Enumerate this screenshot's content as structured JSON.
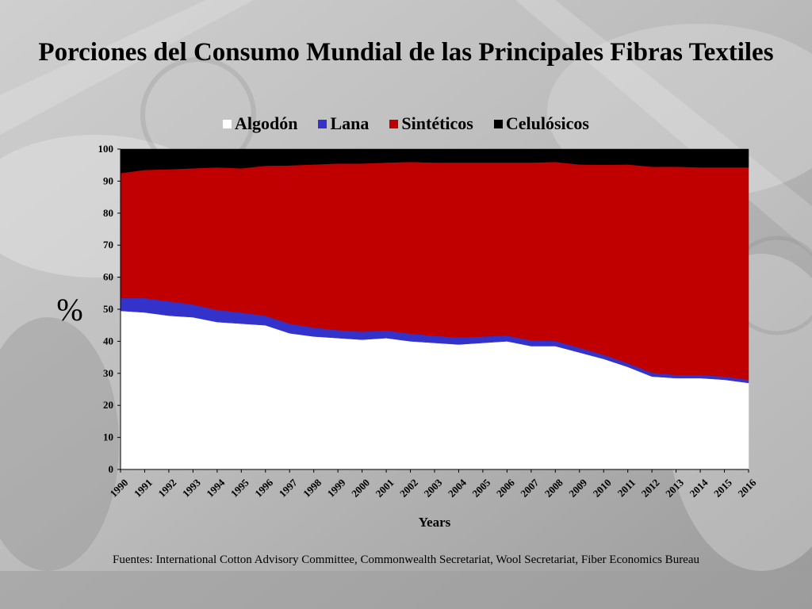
{
  "title": "Porciones del Consumo Mundial de las Principales Fibras Textiles",
  "source": "Fuentes: International Cotton Advisory Committee, Commonwealth Secretariat, Wool Secretariat, Fiber Economics Bureau",
  "chart_data": {
    "type": "area",
    "stacked": true,
    "ylabel": "%",
    "xlabel": "Years",
    "ylim": [
      0,
      100
    ],
    "yticks": [
      0,
      10,
      20,
      30,
      40,
      50,
      60,
      70,
      80,
      90,
      100
    ],
    "legend_position": "top",
    "x": [
      "1990",
      "1991",
      "1992",
      "1993",
      "1994",
      "1995",
      "1996",
      "1997",
      "1998",
      "1999",
      "2000",
      "2001",
      "2002",
      "2003",
      "2004",
      "2005",
      "2006",
      "2007",
      "2008",
      "2009",
      "2010",
      "2011",
      "2012",
      "2013",
      "2014",
      "2015",
      "2016"
    ],
    "series": [
      {
        "name": "Algodón",
        "color": "#ffffff",
        "values": [
          49.5,
          49,
          48,
          47.5,
          46,
          45.5,
          45,
          42.5,
          41.5,
          41,
          40.5,
          41,
          40,
          39.5,
          39,
          39.5,
          40,
          38.5,
          38.5,
          36.5,
          34.5,
          32,
          29,
          28.5,
          28.5,
          28,
          27
        ]
      },
      {
        "name": "Lana",
        "color": "#3333cc",
        "values": [
          4,
          4.5,
          4.5,
          4,
          3.8,
          3.5,
          3,
          3,
          2.8,
          2.5,
          2.5,
          2.4,
          2.4,
          2.2,
          2.2,
          2,
          1.8,
          1.8,
          1.6,
          1.5,
          1.3,
          1.2,
          1.2,
          1,
          1,
          1,
          1
        ]
      },
      {
        "name": "Sintéticos",
        "color": "#c00000",
        "values": [
          39,
          40,
          41.2,
          42.5,
          44.5,
          45,
          46.8,
          49.4,
          50.9,
          52,
          52.5,
          52.4,
          53.6,
          54.1,
          54.6,
          54.3,
          54,
          55.5,
          55.9,
          57.2,
          59.3,
          62,
          64.3,
          65,
          64.8,
          65.3,
          66.3
        ]
      },
      {
        "name": "Celulósicos",
        "color": "#000000",
        "values": [
          7.5,
          6.5,
          6.3,
          6,
          5.7,
          6,
          5.2,
          5.1,
          4.8,
          4.5,
          4.5,
          4.2,
          4,
          4.2,
          4.2,
          4.2,
          4.2,
          4.2,
          4,
          4.8,
          4.9,
          4.8,
          5.5,
          5.5,
          5.7,
          5.7,
          5.7
        ]
      }
    ]
  }
}
